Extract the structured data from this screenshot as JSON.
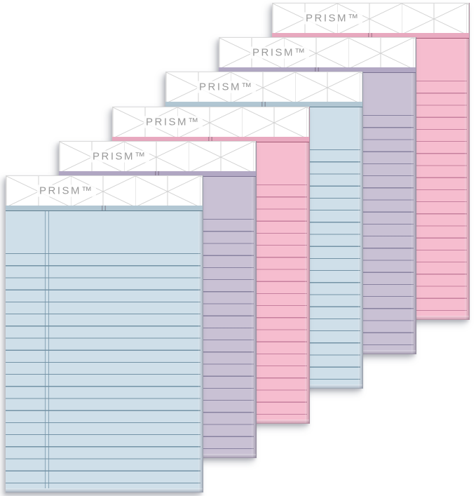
{
  "scene": {
    "description": "Product photo: six pastel ruled writing pads fanned in a diagonal cascade on white",
    "background_color": "#ffffff"
  },
  "brand": {
    "logo_text": "PRISM™",
    "logo_color": "#9a9a9a"
  },
  "header_pattern": {
    "name": "triangle-lattice",
    "line_color": "#d2d2d2",
    "background": "#ffffff"
  },
  "pads": [
    {
      "name": "notepad-1-pink-back",
      "color_name": "pink",
      "colors": {
        "body": "#f6bdcf",
        "line": "#c47d9b",
        "strip": "#e9aac0",
        "edge": "#a65a77"
      }
    },
    {
      "name": "notepad-2-orchid",
      "color_name": "orchid",
      "colors": {
        "body": "#c9c1d4",
        "line": "#847e9c",
        "strip": "#b2a8c4",
        "edge": "#7b7292"
      }
    },
    {
      "name": "notepad-3-blue",
      "color_name": "blue",
      "colors": {
        "body": "#cfdfe9",
        "line": "#6f8fa2",
        "strip": "#b2c7d3",
        "edge": "#5f7d8e"
      }
    },
    {
      "name": "notepad-4-pink",
      "color_name": "pink",
      "colors": {
        "body": "#f6bdcf",
        "line": "#c47d9b",
        "strip": "#e9aac0",
        "edge": "#a65a77"
      }
    },
    {
      "name": "notepad-5-orchid",
      "color_name": "orchid",
      "colors": {
        "body": "#c9c1d4",
        "line": "#847e9c",
        "strip": "#b2a8c4",
        "edge": "#7b7292"
      }
    },
    {
      "name": "notepad-6-blue-front",
      "color_name": "blue",
      "colors": {
        "body": "#cfdfe9",
        "line": "#6f8fa2",
        "strip": "#b2c7d3",
        "edge": "#5f7d8e"
      }
    }
  ]
}
